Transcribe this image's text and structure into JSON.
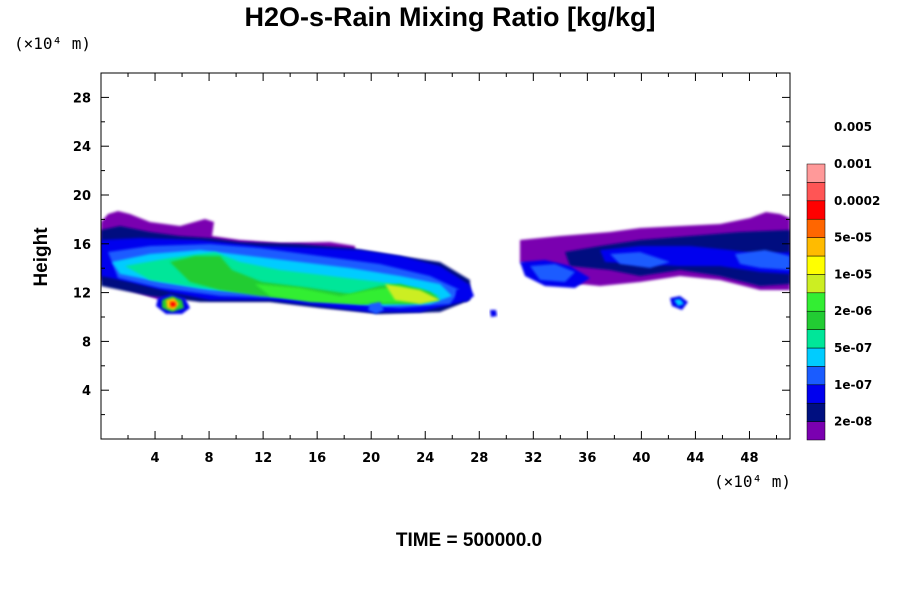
{
  "title": "H2O-s-Rain Mixing Ratio [kg/kg]",
  "y_unit": "(×10⁴ m)",
  "x_unit": "(×10⁴ m)",
  "ylabel": "Height",
  "time_label": "TIME = 500000.0",
  "chart_data": {
    "type": "heatmap",
    "title": "H2O-s-Rain Mixing Ratio [kg/kg]",
    "xlabel": "",
    "ylabel": "Height",
    "x_unit": "×10^4 m",
    "y_unit": "×10^4 m",
    "xlim": [
      0,
      51
    ],
    "ylim": [
      0,
      30
    ],
    "x_ticks": [
      4,
      8,
      12,
      16,
      20,
      24,
      28,
      32,
      36,
      40,
      44,
      48
    ],
    "y_ticks": [
      4,
      8,
      12,
      16,
      20,
      24,
      28
    ],
    "legend": {
      "placement": "right",
      "levels": [
        "2e-08",
        "1e-07",
        "5e-07",
        "2e-06",
        "1e-05",
        "5e-05",
        "0.0002",
        "0.001",
        "0.005"
      ],
      "colors": [
        "#7a00b0",
        "#000f80",
        "#0000ee",
        "#1a5cff",
        "#00ccff",
        "#00e699",
        "#22cc33",
        "#33ee33",
        "#ccee22",
        "#ffff00",
        "#ffbb00",
        "#ff6600",
        "#ff0000",
        "#ff5555",
        "#ff9999"
      ]
    },
    "regions": [
      {
        "x": [
          0,
          29
        ],
        "y": [
          11,
          18.5
        ],
        "level": "2e-08"
      },
      {
        "x": [
          0,
          28
        ],
        "y": [
          12.5,
          15.5
        ],
        "level": "1e-07"
      },
      {
        "x": [
          1,
          27
        ],
        "y": [
          12,
          15
        ],
        "level": "2e-06"
      },
      {
        "x": [
          9,
          27
        ],
        "y": [
          11,
          14
        ],
        "level": "1e-05"
      },
      {
        "x": [
          20,
          27
        ],
        "y": [
          11,
          13.5
        ],
        "level": "5e-05"
      },
      {
        "x": [
          4.5,
          6.5
        ],
        "y": [
          10.5,
          12
        ],
        "level": "0.0002"
      },
      {
        "x": [
          30,
          51
        ],
        "y": [
          12.5,
          18.5
        ],
        "level": "2e-08"
      },
      {
        "x": [
          35,
          51
        ],
        "y": [
          12.5,
          16
        ],
        "level": "1e-07"
      },
      {
        "x": [
          42.5,
          43.5
        ],
        "y": [
          10.8,
          11.8
        ],
        "level": "5e-07"
      }
    ]
  }
}
